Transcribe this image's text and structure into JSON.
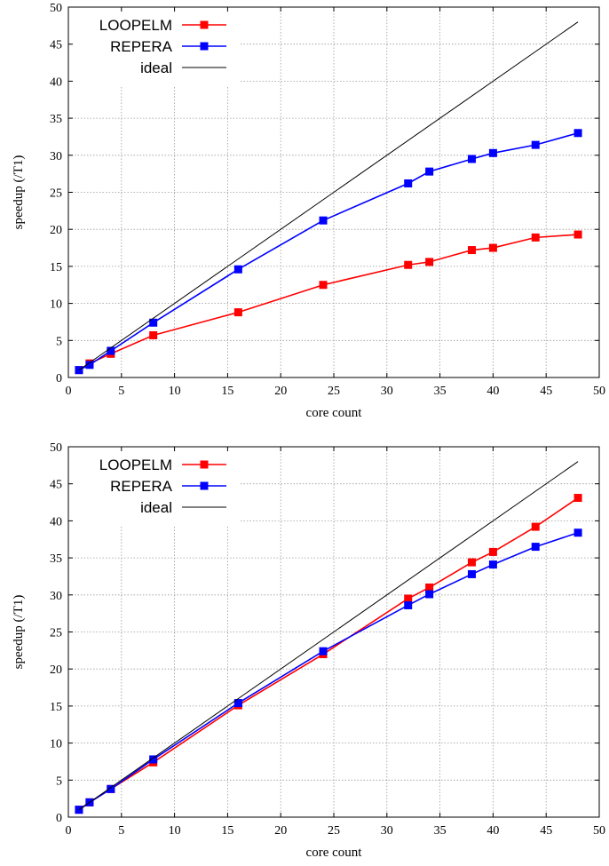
{
  "chart_data": [
    {
      "type": "line",
      "xlabel": "core count",
      "ylabel": "speedup (/T1)",
      "xlim": [
        0,
        50
      ],
      "ylim": [
        0,
        50
      ],
      "xticks": [
        0,
        5,
        10,
        15,
        20,
        25,
        30,
        35,
        40,
        45,
        50
      ],
      "yticks": [
        0,
        5,
        10,
        15,
        20,
        25,
        30,
        35,
        40,
        45,
        50
      ],
      "grid": true,
      "legend_position": "top-left",
      "series": [
        {
          "name": "LOOPELM",
          "color": "#ff0000",
          "marker": "square",
          "x": [
            1,
            2,
            4,
            8,
            16,
            24,
            32,
            34,
            38,
            40,
            44,
            48
          ],
          "y": [
            1.0,
            1.9,
            3.2,
            5.7,
            8.8,
            12.5,
            15.2,
            15.6,
            17.2,
            17.5,
            18.9,
            19.3
          ]
        },
        {
          "name": "REPERA",
          "color": "#0000ff",
          "marker": "square",
          "x": [
            1,
            2,
            4,
            8,
            16,
            24,
            32,
            34,
            38,
            40,
            44,
            48
          ],
          "y": [
            1.0,
            1.7,
            3.6,
            7.4,
            14.6,
            21.2,
            26.2,
            27.8,
            29.5,
            30.3,
            31.4,
            33.0
          ]
        },
        {
          "name": "ideal",
          "color": "#000000",
          "marker": "none",
          "x": [
            1,
            48
          ],
          "y": [
            1,
            48
          ]
        }
      ]
    },
    {
      "type": "line",
      "xlabel": "core count",
      "ylabel": "speedup (/T1)",
      "xlim": [
        0,
        50
      ],
      "ylim": [
        0,
        50
      ],
      "xticks": [
        0,
        5,
        10,
        15,
        20,
        25,
        30,
        35,
        40,
        45,
        50
      ],
      "yticks": [
        0,
        5,
        10,
        15,
        20,
        25,
        30,
        35,
        40,
        45,
        50
      ],
      "grid": true,
      "legend_position": "top-left",
      "series": [
        {
          "name": "LOOPELM",
          "color": "#ff0000",
          "marker": "square",
          "x": [
            1,
            2,
            4,
            8,
            16,
            24,
            32,
            34,
            38,
            40,
            44,
            48
          ],
          "y": [
            1.0,
            2.0,
            3.8,
            7.4,
            15.1,
            22.0,
            29.5,
            31.0,
            34.4,
            35.8,
            39.2,
            43.1
          ]
        },
        {
          "name": "REPERA",
          "color": "#0000ff",
          "marker": "square",
          "x": [
            1,
            2,
            4,
            8,
            16,
            24,
            32,
            34,
            38,
            40,
            44,
            48
          ],
          "y": [
            1.0,
            2.0,
            3.8,
            7.8,
            15.4,
            22.4,
            28.6,
            30.1,
            32.8,
            34.1,
            36.5,
            38.4
          ]
        },
        {
          "name": "ideal",
          "color": "#000000",
          "marker": "none",
          "x": [
            1,
            48
          ],
          "y": [
            1,
            48
          ]
        }
      ]
    }
  ]
}
